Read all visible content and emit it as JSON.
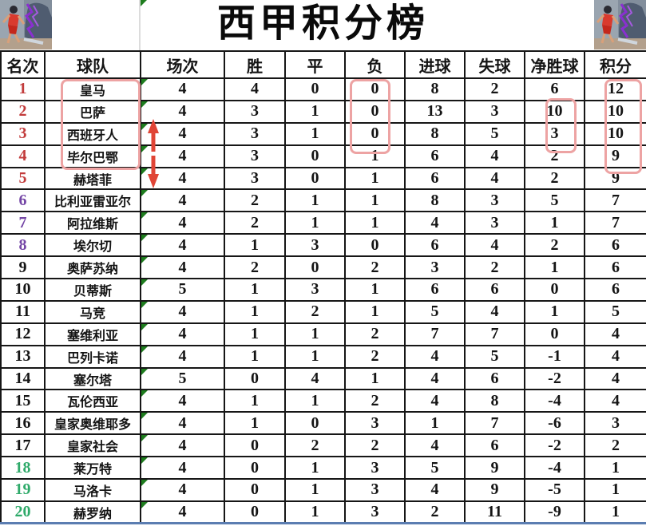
{
  "title": "西甲积分榜",
  "columns": [
    "名次",
    "球队",
    "场次",
    "胜",
    "平",
    "负",
    "进球",
    "失球",
    "净胜球",
    "积分"
  ],
  "standings": [
    {
      "rank": "1",
      "team": "皇马",
      "played": "4",
      "win": "4",
      "draw": "0",
      "loss": "0",
      "goals_for": "8",
      "goals_against": "2",
      "goal_diff": "6",
      "points": "12",
      "rank_color": "red"
    },
    {
      "rank": "2",
      "team": "巴萨",
      "played": "4",
      "win": "3",
      "draw": "1",
      "loss": "0",
      "goals_for": "13",
      "goals_against": "3",
      "goal_diff": "10",
      "points": "10",
      "rank_color": "red"
    },
    {
      "rank": "3",
      "team": "西班牙人",
      "played": "4",
      "win": "3",
      "draw": "1",
      "loss": "0",
      "goals_for": "8",
      "goals_against": "5",
      "goal_diff": "3",
      "points": "10",
      "rank_color": "red"
    },
    {
      "rank": "4",
      "team": "毕尔巴鄂",
      "played": "4",
      "win": "3",
      "draw": "0",
      "loss": "1",
      "goals_for": "6",
      "goals_against": "4",
      "goal_diff": "2",
      "points": "9",
      "rank_color": "red"
    },
    {
      "rank": "5",
      "team": "赫塔菲",
      "played": "4",
      "win": "3",
      "draw": "0",
      "loss": "1",
      "goals_for": "6",
      "goals_against": "4",
      "goal_diff": "2",
      "points": "9",
      "rank_color": "red"
    },
    {
      "rank": "6",
      "team": "比利亚雷亚尔",
      "played": "4",
      "win": "2",
      "draw": "1",
      "loss": "1",
      "goals_for": "8",
      "goals_against": "3",
      "goal_diff": "5",
      "points": "7",
      "rank_color": "purple"
    },
    {
      "rank": "7",
      "team": "阿拉维斯",
      "played": "4",
      "win": "2",
      "draw": "1",
      "loss": "1",
      "goals_for": "4",
      "goals_against": "3",
      "goal_diff": "1",
      "points": "7",
      "rank_color": "purple"
    },
    {
      "rank": "8",
      "team": "埃尔切",
      "played": "4",
      "win": "1",
      "draw": "3",
      "loss": "0",
      "goals_for": "6",
      "goals_against": "4",
      "goal_diff": "2",
      "points": "6",
      "rank_color": "purple"
    },
    {
      "rank": "9",
      "team": "奥萨苏纳",
      "played": "4",
      "win": "2",
      "draw": "0",
      "loss": "2",
      "goals_for": "3",
      "goals_against": "2",
      "goal_diff": "1",
      "points": "6",
      "rank_color": "black"
    },
    {
      "rank": "10",
      "team": "贝蒂斯",
      "played": "5",
      "win": "1",
      "draw": "3",
      "loss": "1",
      "goals_for": "6",
      "goals_against": "6",
      "goal_diff": "0",
      "points": "6",
      "rank_color": "black"
    },
    {
      "rank": "11",
      "team": "马竞",
      "played": "4",
      "win": "1",
      "draw": "2",
      "loss": "1",
      "goals_for": "5",
      "goals_against": "4",
      "goal_diff": "1",
      "points": "5",
      "rank_color": "black"
    },
    {
      "rank": "12",
      "team": "塞维利亚",
      "played": "4",
      "win": "1",
      "draw": "1",
      "loss": "2",
      "goals_for": "7",
      "goals_against": "7",
      "goal_diff": "0",
      "points": "4",
      "rank_color": "black"
    },
    {
      "rank": "13",
      "team": "巴列卡诺",
      "played": "4",
      "win": "1",
      "draw": "1",
      "loss": "2",
      "goals_for": "4",
      "goals_against": "5",
      "goal_diff": "-1",
      "points": "4",
      "rank_color": "black"
    },
    {
      "rank": "14",
      "team": "塞尔塔",
      "played": "5",
      "win": "0",
      "draw": "4",
      "loss": "1",
      "goals_for": "4",
      "goals_against": "6",
      "goal_diff": "-2",
      "points": "4",
      "rank_color": "black"
    },
    {
      "rank": "15",
      "team": "瓦伦西亚",
      "played": "4",
      "win": "1",
      "draw": "1",
      "loss": "2",
      "goals_for": "4",
      "goals_against": "8",
      "goal_diff": "-4",
      "points": "4",
      "rank_color": "black"
    },
    {
      "rank": "16",
      "team": "皇家奥维耶多",
      "played": "4",
      "win": "1",
      "draw": "0",
      "loss": "3",
      "goals_for": "1",
      "goals_against": "7",
      "goal_diff": "-6",
      "points": "3",
      "rank_color": "black"
    },
    {
      "rank": "17",
      "team": "皇家社会",
      "played": "4",
      "win": "0",
      "draw": "2",
      "loss": "2",
      "goals_for": "4",
      "goals_against": "6",
      "goal_diff": "-2",
      "points": "2",
      "rank_color": "black"
    },
    {
      "rank": "18",
      "team": "莱万特",
      "played": "4",
      "win": "0",
      "draw": "1",
      "loss": "3",
      "goals_for": "5",
      "goals_against": "9",
      "goal_diff": "-4",
      "points": "1",
      "rank_color": "green"
    },
    {
      "rank": "19",
      "team": "马洛卡",
      "played": "4",
      "win": "0",
      "draw": "1",
      "loss": "3",
      "goals_for": "4",
      "goals_against": "9",
      "goal_diff": "-5",
      "points": "1",
      "rank_color": "green"
    },
    {
      "rank": "20",
      "team": "赫罗纳",
      "played": "4",
      "win": "0",
      "draw": "1",
      "loss": "3",
      "goals_for": "2",
      "goals_against": "11",
      "goal_diff": "-9",
      "points": "1",
      "rank_color": "green"
    }
  ],
  "annotations": {
    "team_highlight_rows": "1-4",
    "loss_highlight_rows": "1-3",
    "goal_diff_highlight_rows": "2-3",
    "points_highlight_rows": "1-4",
    "trend_arrows": [
      "up",
      "down"
    ]
  },
  "colors": {
    "rank_red": "#c23b3b",
    "rank_purple": "#7446a6",
    "rank_green": "#2faa6a",
    "highlight_box": "#eda3a3",
    "arrow_red": "#e04536",
    "comment_marker_green": "#1e7d1e",
    "bottom_border_blue": "#5b7db1"
  }
}
